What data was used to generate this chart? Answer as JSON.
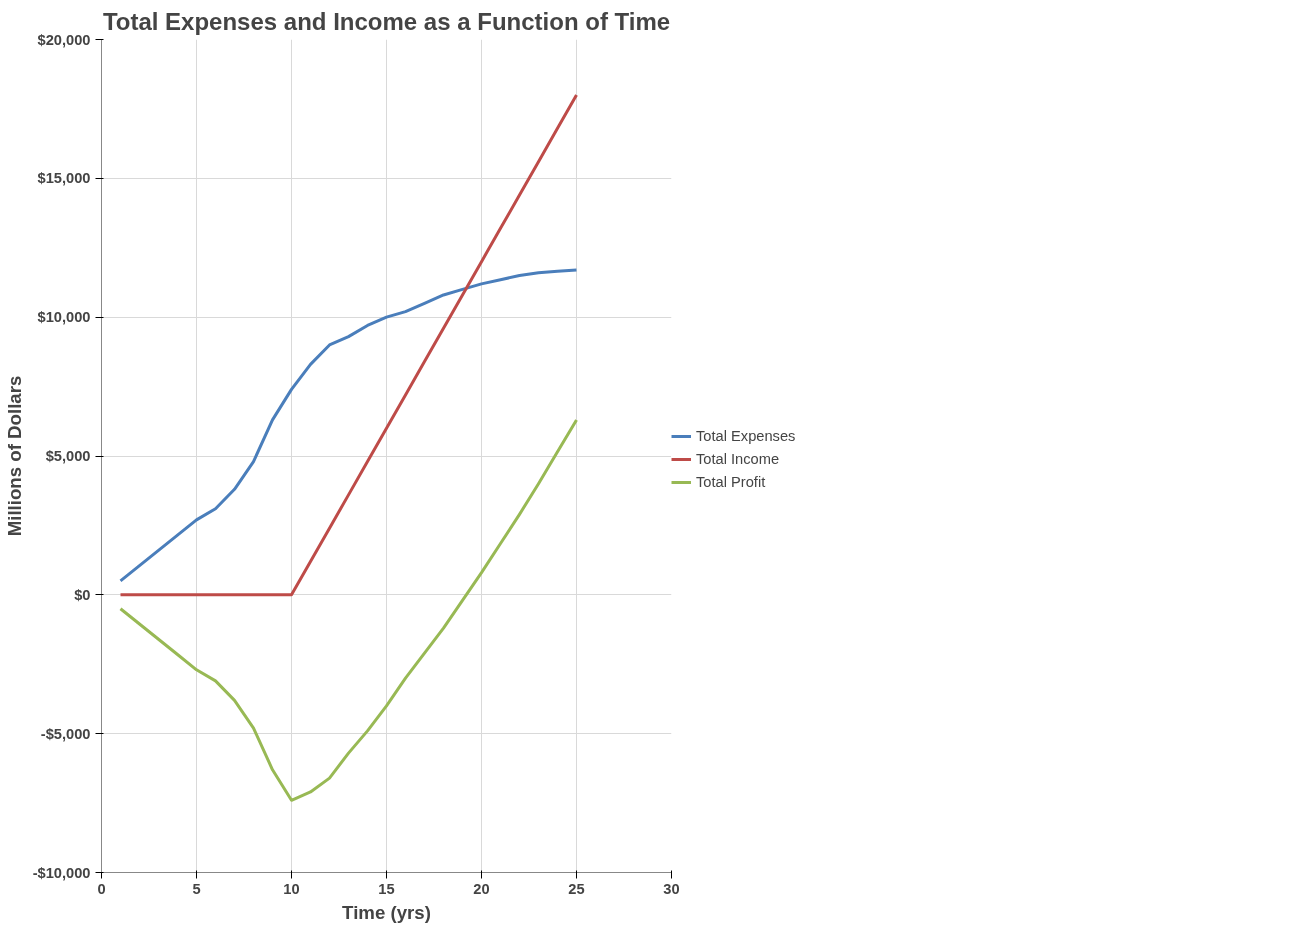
{
  "chart_data": {
    "type": "line",
    "title": "Total Expenses and Income as a Function of Time",
    "xlabel": "Time (yrs)",
    "ylabel": "Millions of Dollars",
    "x": [
      1,
      2,
      3,
      4,
      5,
      6,
      7,
      8,
      9,
      10,
      11,
      12,
      13,
      14,
      15,
      16,
      17,
      18,
      19,
      20,
      21,
      22,
      23,
      24,
      25
    ],
    "series": [
      {
        "name": "Total Expenses",
        "color": "#4a7ebb",
        "values": [
          500,
          1050,
          1600,
          2150,
          2700,
          3100,
          3800,
          4800,
          6300,
          7400,
          8300,
          9000,
          9300,
          9700,
          10000,
          10200,
          10500,
          10800,
          11000,
          11200,
          11350,
          11500,
          11600,
          11650,
          11700
        ]
      },
      {
        "name": "Total Income",
        "color": "#be4b48",
        "values": [
          0,
          0,
          0,
          0,
          0,
          0,
          0,
          0,
          0,
          0,
          1200,
          2400,
          3600,
          4800,
          6000,
          7200,
          8400,
          9600,
          10800,
          12000,
          13200,
          14400,
          15600,
          16800,
          18000
        ]
      },
      {
        "name": "Total Profit",
        "color": "#98b954",
        "values": [
          -500,
          -1050,
          -1600,
          -2150,
          -2700,
          -3100,
          -3800,
          -4800,
          -6300,
          -7400,
          -7100,
          -6600,
          -5700,
          -4900,
          -4000,
          -3000,
          -2100,
          -1200,
          -200,
          800,
          1850,
          2900,
          4000,
          5150,
          6300
        ]
      }
    ],
    "xlim": [
      0,
      30
    ],
    "xticks": [
      0,
      5,
      10,
      15,
      20,
      25,
      30
    ],
    "ylim": [
      -10000,
      20000
    ],
    "yticks": [
      {
        "value": -10000,
        "label": "-$10,000"
      },
      {
        "value": -5000,
        "label": "-$5,000"
      },
      {
        "value": 0,
        "label": "$0"
      },
      {
        "value": 5000,
        "label": "$5,000"
      },
      {
        "value": 10000,
        "label": "$10,000"
      },
      {
        "value": 15000,
        "label": "$15,000"
      },
      {
        "value": 20000,
        "label": "$20,000"
      }
    ],
    "grid": true,
    "legend": "right",
    "marker": "none",
    "line_style": "solid"
  }
}
